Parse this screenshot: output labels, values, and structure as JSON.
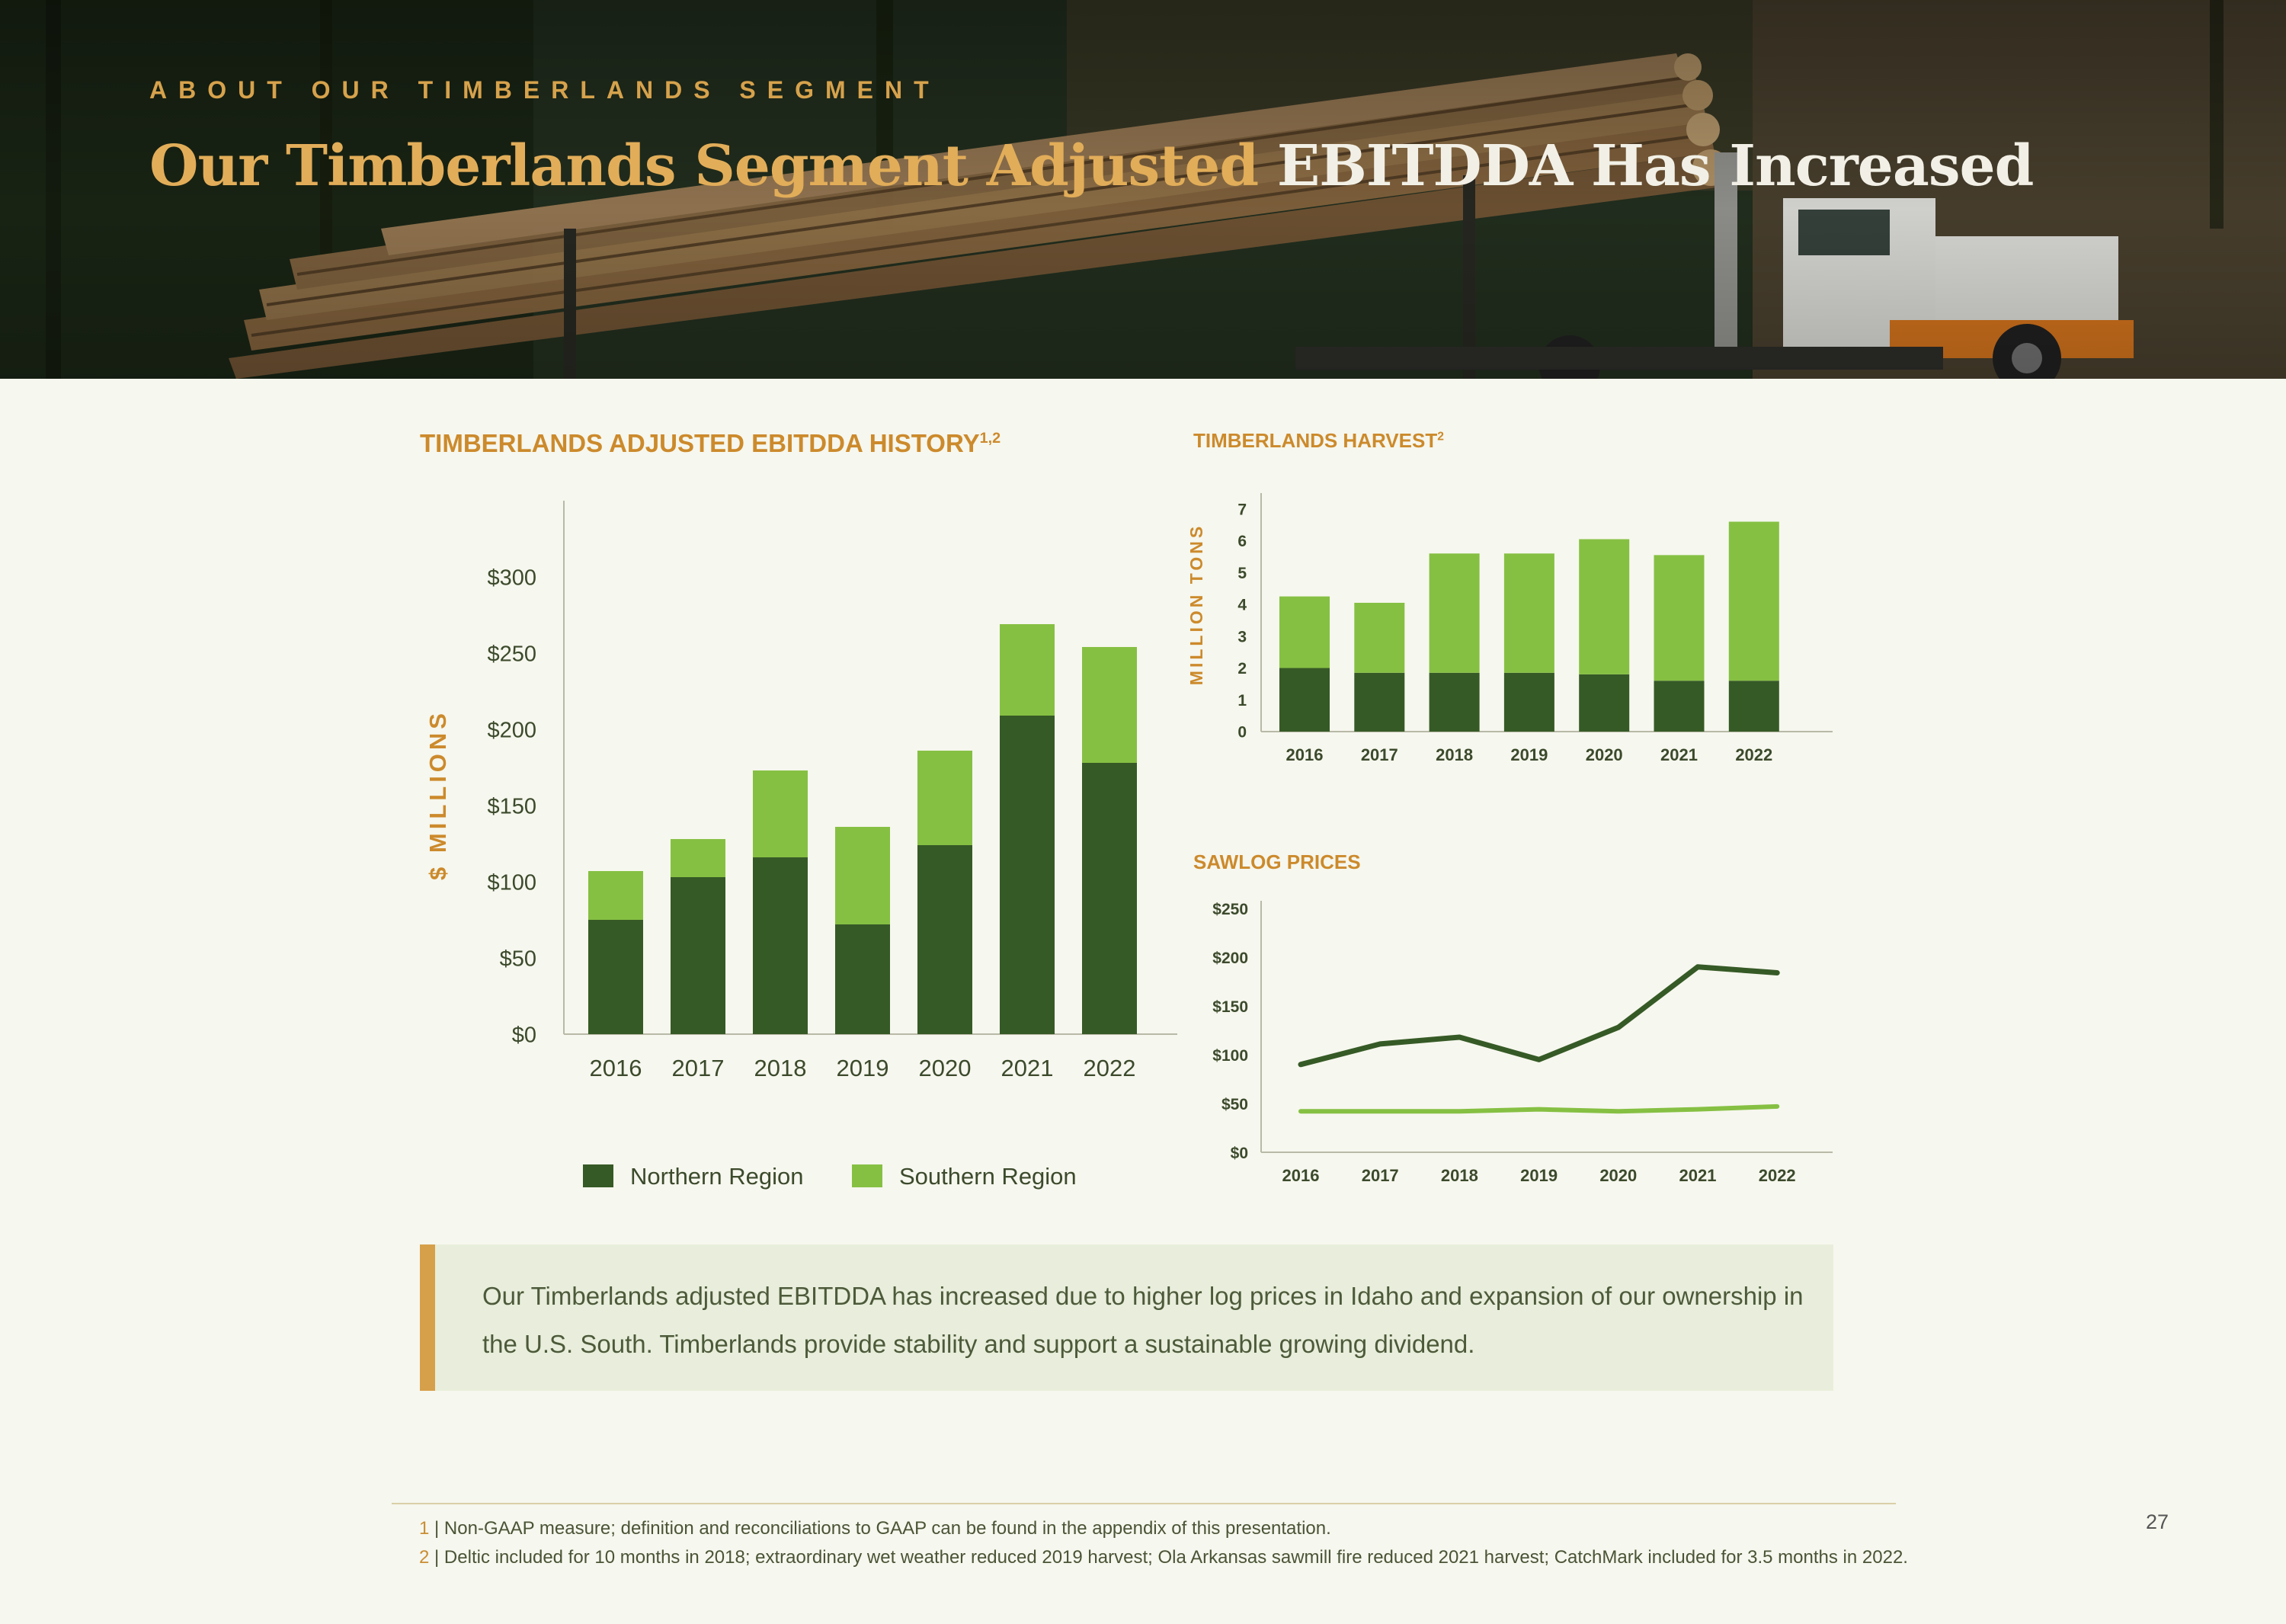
{
  "header": {
    "eyebrow": "ABOUT OUR TIMBERLANDS SEGMENT",
    "title_gold": "Our Timberlands Segment Adjusted",
    "title_white": "EBITDDA Has Increased"
  },
  "colors": {
    "northern": "#365a26",
    "southern": "#86c043",
    "accent": "#cc8a2c"
  },
  "chart_data": [
    {
      "id": "ebitdda",
      "type": "bar",
      "stacked": true,
      "title": "TIMBERLANDS ADJUSTED EBITDDA HISTORY",
      "title_sup": "1,2",
      "ylabel": "$ MILLIONS",
      "ylim": [
        0,
        350
      ],
      "yticks": [
        0,
        50,
        100,
        150,
        200,
        250,
        300
      ],
      "ytick_labels": [
        "$0",
        "$50",
        "$100",
        "$150",
        "$200",
        "$250",
        "$300"
      ],
      "categories": [
        "2016",
        "2017",
        "2018",
        "2019",
        "2020",
        "2021",
        "2022"
      ],
      "series": [
        {
          "name": "Northern Region",
          "values": [
            75,
            103,
            116,
            72,
            124,
            209,
            178
          ]
        },
        {
          "name": "Southern Region",
          "values": [
            32,
            25,
            57,
            64,
            62,
            60,
            76
          ]
        }
      ],
      "legend": "bottom"
    },
    {
      "id": "harvest",
      "type": "bar",
      "stacked": true,
      "title": "TIMBERLANDS HARVEST",
      "title_sup": "2",
      "ylabel": "MILLION TONS",
      "ylim": [
        0,
        7.5
      ],
      "yticks": [
        0,
        1,
        2,
        3,
        4,
        5,
        6,
        7
      ],
      "ytick_labels": [
        "0",
        "1",
        "2",
        "3",
        "4",
        "5",
        "6",
        "7"
      ],
      "categories": [
        "2016",
        "2017",
        "2018",
        "2019",
        "2020",
        "2021",
        "2022"
      ],
      "series": [
        {
          "name": "Northern Region",
          "values": [
            2.0,
            1.85,
            1.85,
            1.85,
            1.8,
            1.6,
            1.6
          ]
        },
        {
          "name": "Southern Region",
          "values": [
            2.25,
            2.2,
            3.75,
            3.75,
            4.25,
            3.95,
            5.0
          ]
        }
      ]
    },
    {
      "id": "sawlog",
      "type": "line",
      "title": "SAWLOG PRICES",
      "ylim": [
        0,
        250
      ],
      "yticks": [
        0,
        50,
        100,
        150,
        200,
        250
      ],
      "ytick_labels": [
        "$0",
        "$50",
        "$100",
        "$150",
        "$200",
        "$250"
      ],
      "categories": [
        "2016",
        "2017",
        "2018",
        "2019",
        "2020",
        "2021",
        "2022"
      ],
      "series": [
        {
          "name": "Northern Region",
          "values": [
            90,
            111,
            118,
            95,
            128,
            190,
            184
          ]
        },
        {
          "name": "Southern Region",
          "values": [
            42,
            42,
            42,
            44,
            42,
            44,
            47
          ]
        }
      ]
    }
  ],
  "callout": {
    "text": "Our Timberlands adjusted EBITDDA has increased due to higher log prices in Idaho and expansion of our ownership in the U.S. South. Timberlands provide stability and support a sustainable growing dividend."
  },
  "footnotes": [
    {
      "num": "1",
      "text": "| Non-GAAP measure; definition and reconciliations to GAAP can be found in the appendix of this presentation."
    },
    {
      "num": "2",
      "text": "| Deltic included for 10 months in 2018; extraordinary wet weather reduced 2019 harvest; Ola Arkansas sawmill fire reduced 2021 harvest; CatchMark included for 3.5 months in 2022."
    }
  ],
  "page_number": "27"
}
